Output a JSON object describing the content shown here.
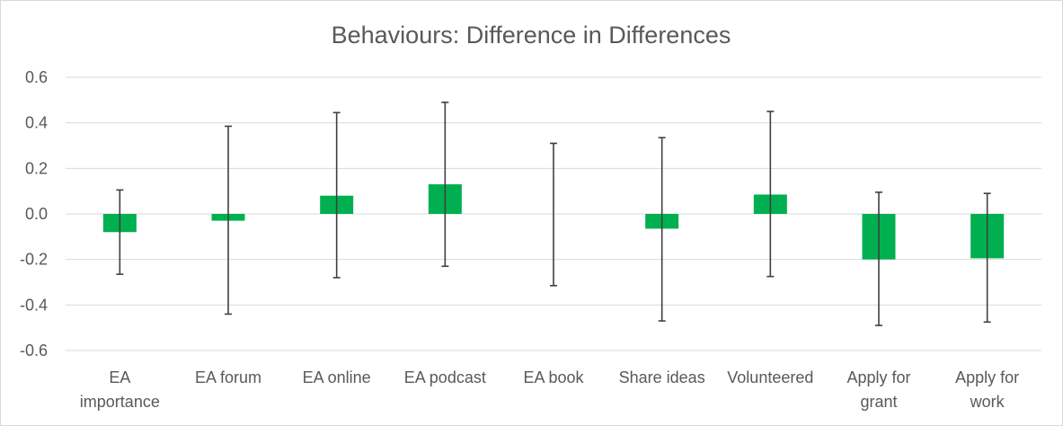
{
  "chart_data": {
    "type": "bar",
    "title": "Behaviours: Difference in Differences",
    "xlabel": "",
    "ylabel": "",
    "ylim": [
      -0.6,
      0.6
    ],
    "yticks": [
      0.6,
      0.4,
      0.2,
      0.0,
      -0.2,
      -0.4,
      -0.6
    ],
    "ytick_labels": [
      "0.6",
      "0.4",
      "0.2",
      "0.0",
      "-0.2",
      "-0.4",
      "-0.6"
    ],
    "grid": true,
    "bar_color": "#00b050",
    "categories": [
      [
        "EA",
        "importance"
      ],
      [
        "EA forum"
      ],
      [
        "EA online"
      ],
      [
        "EA podcast"
      ],
      [
        "EA book"
      ],
      [
        "Share ideas"
      ],
      [
        "Volunteered"
      ],
      [
        "Apply for",
        "grant"
      ],
      [
        "Apply for",
        "work"
      ]
    ],
    "values": [
      -0.08,
      -0.03,
      0.08,
      0.13,
      0.0,
      -0.065,
      0.085,
      -0.2,
      -0.195
    ],
    "error_low": [
      -0.265,
      -0.44,
      -0.28,
      -0.23,
      -0.315,
      -0.47,
      -0.275,
      -0.49,
      -0.475
    ],
    "error_high": [
      0.105,
      0.385,
      0.445,
      0.49,
      0.31,
      0.335,
      0.45,
      0.095,
      0.09
    ]
  }
}
